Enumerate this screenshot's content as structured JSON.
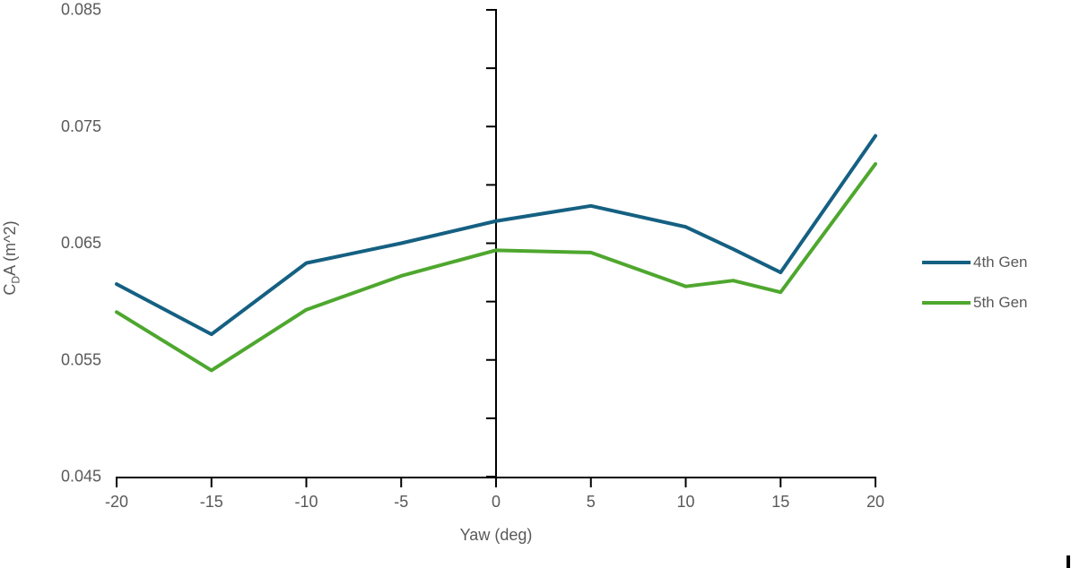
{
  "chart_data": {
    "type": "line",
    "title": "",
    "xlabel": "Yaw (deg)",
    "ylabel": {
      "prefix": "C",
      "sub": "D",
      "suffix": "A (m^2)"
    },
    "x": [
      -20,
      -15,
      -10,
      -5,
      0,
      5,
      10,
      12.5,
      15,
      20
    ],
    "series": [
      {
        "name": "4th Gen",
        "color": "#156082",
        "values": [
          0.0615,
          0.0572,
          0.0633,
          0.065,
          0.0669,
          0.0682,
          0.0664,
          0.0645,
          0.0625,
          0.0742
        ]
      },
      {
        "name": "5th Gen",
        "color": "#4EA72E",
        "values": [
          0.0591,
          0.0541,
          0.0593,
          0.0622,
          0.0644,
          0.0642,
          0.0613,
          0.0618,
          0.0608,
          0.0718
        ]
      }
    ],
    "xlim": [
      -20,
      20
    ],
    "ylim": [
      0.045,
      0.085
    ],
    "x_ticks": [
      -20,
      -15,
      -10,
      -5,
      0,
      5,
      10,
      15,
      20
    ],
    "y_label_ticks": [
      0.045,
      0.055,
      0.065,
      0.075,
      0.085
    ],
    "y_minor_step": 0.005,
    "grid": false,
    "legend_position": "right",
    "axis_color": "#000000",
    "text_color": "#595959",
    "line_width": 4
  }
}
